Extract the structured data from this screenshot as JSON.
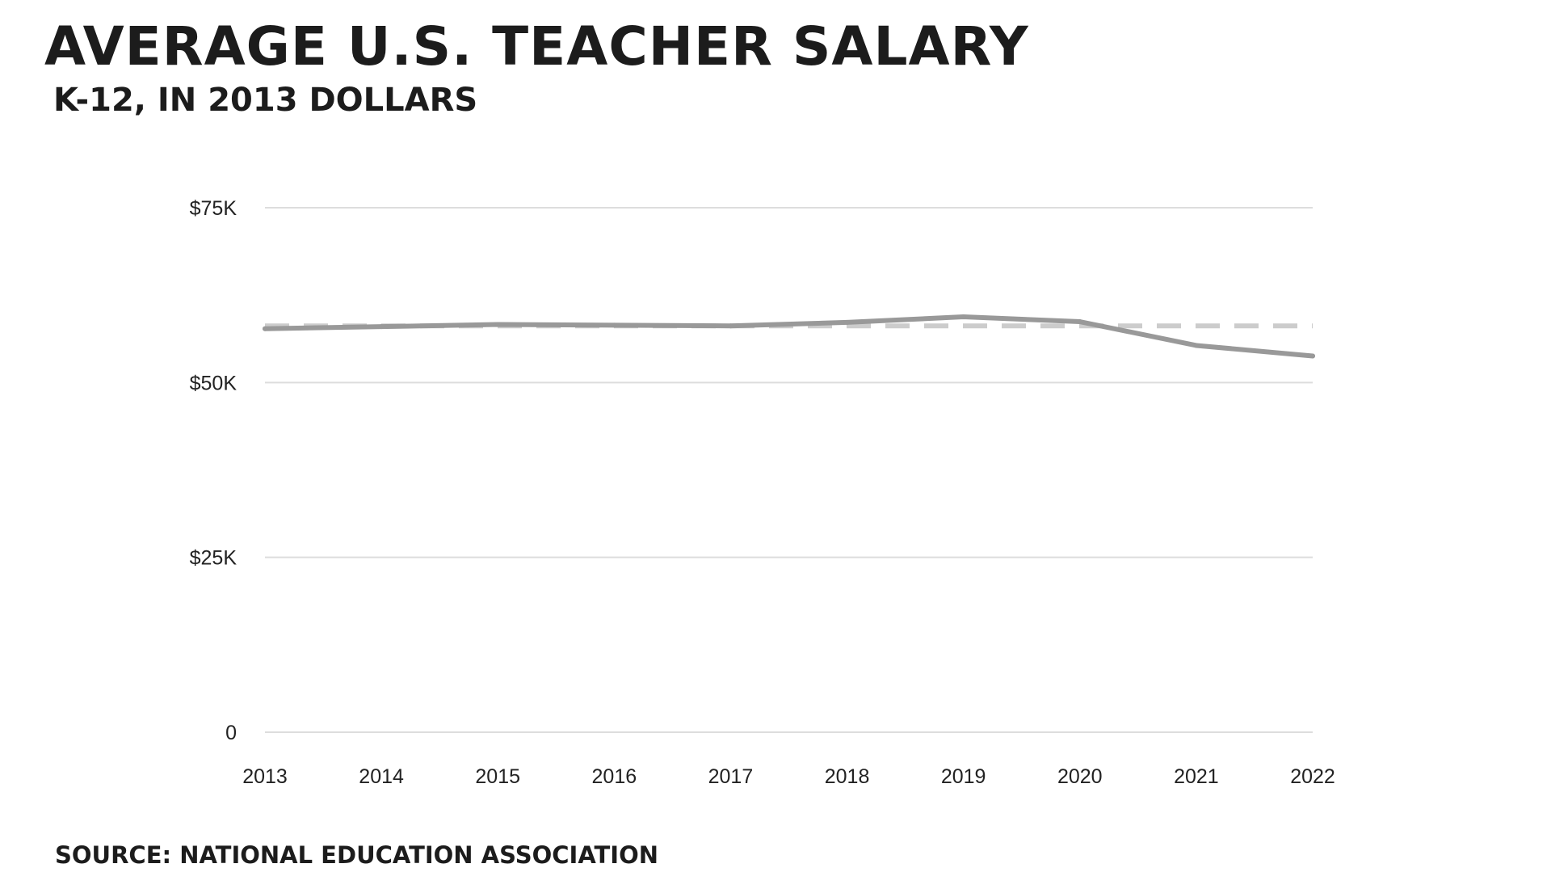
{
  "chart_data": {
    "type": "line",
    "title": "AVERAGE U.S. TEACHER SALARY",
    "subtitle": "K-12, IN 2013 DOLLARS",
    "source": "SOURCE: NATIONAL EDUCATION ASSOCIATION",
    "x": [
      2013,
      2014,
      2015,
      2016,
      2017,
      2018,
      2019,
      2020,
      2021,
      2022
    ],
    "x_tick_labels": [
      "2013",
      "2014",
      "2015",
      "2016",
      "2017",
      "2018",
      "2019",
      "2020",
      "2021",
      "2022"
    ],
    "series": [
      {
        "values": [
          57700,
          58000,
          58300,
          58200,
          58100,
          58600,
          59400,
          58700,
          55300,
          53800
        ],
        "color": "#999999",
        "style": "solid"
      }
    ],
    "reference_line": {
      "value": 58100,
      "color": "#cccccc",
      "style": "dashed"
    },
    "ylim": [
      0,
      75000
    ],
    "y_ticks": [
      0,
      25000,
      50000,
      75000
    ],
    "y_tick_labels": [
      "0",
      "$25K",
      "$50K",
      "$75K"
    ],
    "grid": "horizontal",
    "legend": "none",
    "colors": {
      "text": "#1c1c1c",
      "grid": "#dddddd",
      "line": "#999999",
      "reference": "#cccccc"
    }
  }
}
